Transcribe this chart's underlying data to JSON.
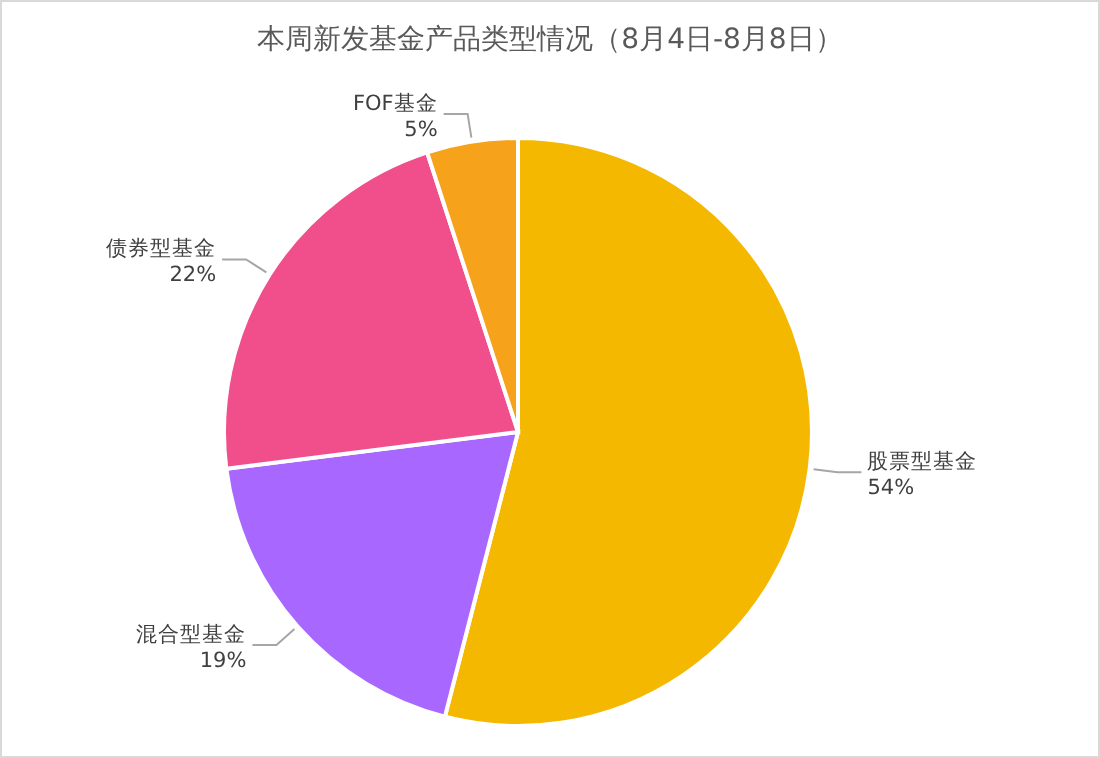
{
  "chart_data": {
    "type": "pie",
    "title": "本周新发基金产品类型情况（8月4日-8月8日）",
    "categories": [
      "股票型基金",
      "混合型基金",
      "债券型基金",
      "FOF基金"
    ],
    "values": [
      54,
      19,
      22,
      5
    ],
    "value_labels": [
      "54%",
      "19%",
      "22%",
      "5%"
    ],
    "colors": [
      "#f5b800",
      "#a868ff",
      "#f04f8c",
      "#f7a21b"
    ],
    "legend": false
  }
}
